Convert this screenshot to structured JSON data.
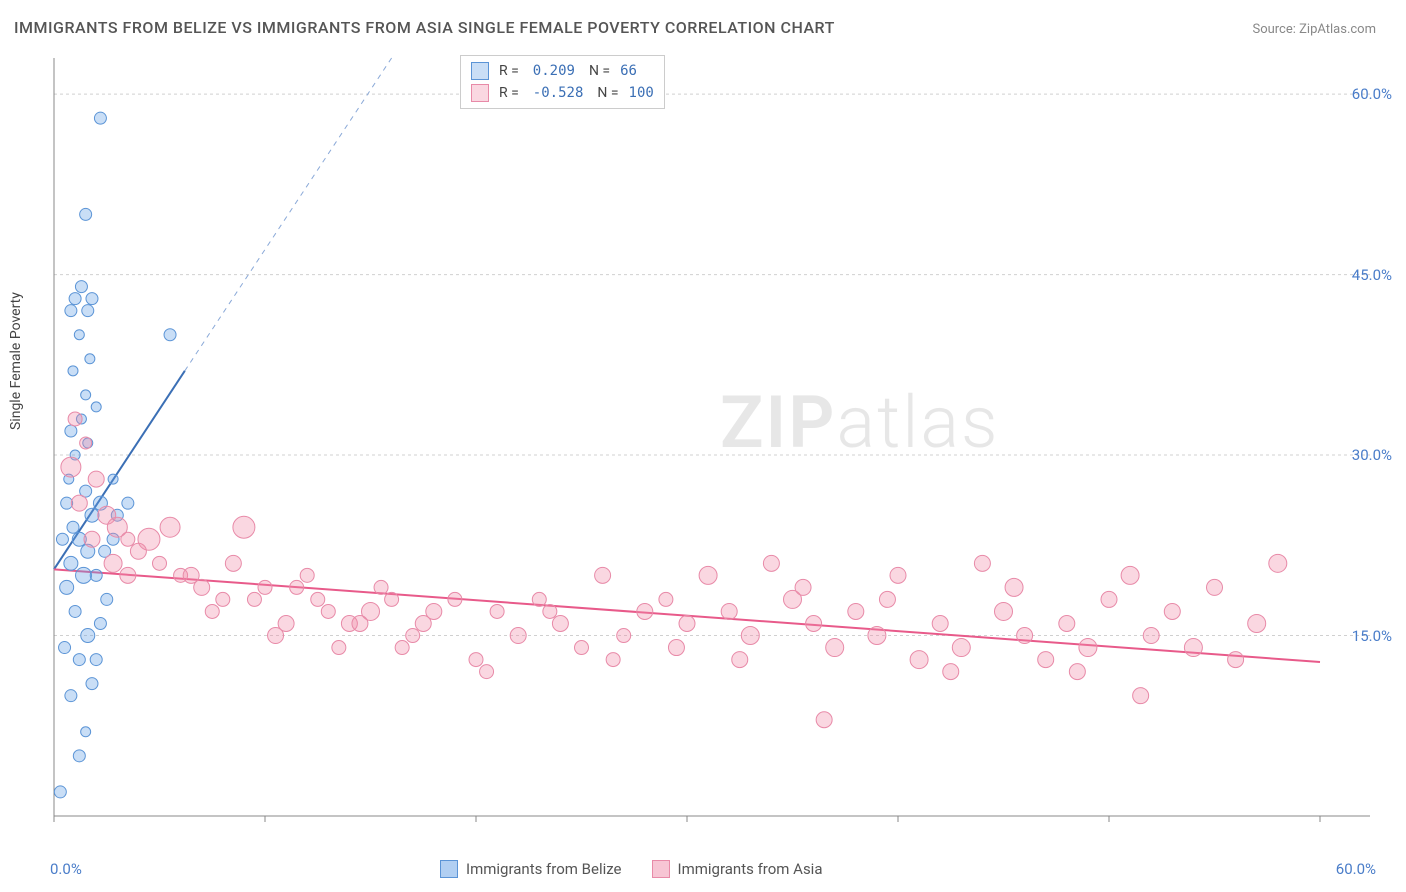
{
  "title": "IMMIGRANTS FROM BELIZE VS IMMIGRANTS FROM ASIA SINGLE FEMALE POVERTY CORRELATION CHART",
  "source": "Source: ZipAtlas.com",
  "y_axis_label": "Single Female Poverty",
  "watermark_zip": "ZIP",
  "watermark_atlas": "atlas",
  "chart": {
    "type": "scatter",
    "background_color": "#ffffff",
    "grid_color": "#d0d0d0",
    "axis_color": "#888888",
    "xlim": [
      0,
      60
    ],
    "ylim": [
      0,
      63
    ],
    "x_ticks": [
      0,
      10,
      20,
      30,
      40,
      50,
      60
    ],
    "y_ticks": [
      15,
      30,
      45,
      60
    ],
    "y_tick_labels": [
      "15.0%",
      "30.0%",
      "45.0%",
      "60.0%"
    ],
    "x_min_label": "0.0%",
    "x_max_label": "60.0%",
    "tick_label_color": "#4a7dc9",
    "marker_radius_min": 5,
    "marker_radius_max": 12,
    "series": [
      {
        "name": "Immigrants from Belize",
        "marker_fill": "rgba(100,160,230,0.35)",
        "marker_stroke": "#5b94d6",
        "line_color": "#3b6fb5",
        "line_width": 2,
        "dash_color": "#8aa9d8",
        "R": "0.209",
        "N": "66",
        "regression": {
          "x1": 0,
          "y1": 20.5,
          "x2": 6.2,
          "y2": 37,
          "dash_x2": 16,
          "dash_y2": 63
        },
        "points": [
          {
            "x": 0.3,
            "y": 2,
            "r": 6
          },
          {
            "x": 1.2,
            "y": 5,
            "r": 6
          },
          {
            "x": 1.5,
            "y": 7,
            "r": 5
          },
          {
            "x": 0.8,
            "y": 10,
            "r": 6
          },
          {
            "x": 1.8,
            "y": 11,
            "r": 6
          },
          {
            "x": 1.2,
            "y": 13,
            "r": 6
          },
          {
            "x": 2.0,
            "y": 13,
            "r": 6
          },
          {
            "x": 0.5,
            "y": 14,
            "r": 6
          },
          {
            "x": 1.6,
            "y": 15,
            "r": 7
          },
          {
            "x": 2.2,
            "y": 16,
            "r": 6
          },
          {
            "x": 1.0,
            "y": 17,
            "r": 6
          },
          {
            "x": 2.5,
            "y": 18,
            "r": 6
          },
          {
            "x": 0.6,
            "y": 19,
            "r": 7
          },
          {
            "x": 1.4,
            "y": 20,
            "r": 8
          },
          {
            "x": 2.0,
            "y": 20,
            "r": 6
          },
          {
            "x": 0.8,
            "y": 21,
            "r": 7
          },
          {
            "x": 1.6,
            "y": 22,
            "r": 7
          },
          {
            "x": 2.4,
            "y": 22,
            "r": 6
          },
          {
            "x": 0.4,
            "y": 23,
            "r": 6
          },
          {
            "x": 1.2,
            "y": 23,
            "r": 7
          },
          {
            "x": 2.8,
            "y": 23,
            "r": 6
          },
          {
            "x": 0.9,
            "y": 24,
            "r": 6
          },
          {
            "x": 1.8,
            "y": 25,
            "r": 7
          },
          {
            "x": 3.0,
            "y": 25,
            "r": 6
          },
          {
            "x": 0.6,
            "y": 26,
            "r": 6
          },
          {
            "x": 2.2,
            "y": 26,
            "r": 7
          },
          {
            "x": 3.5,
            "y": 26,
            "r": 6
          },
          {
            "x": 1.5,
            "y": 27,
            "r": 6
          },
          {
            "x": 0.7,
            "y": 28,
            "r": 5
          },
          {
            "x": 2.8,
            "y": 28,
            "r": 5
          },
          {
            "x": 1.0,
            "y": 30,
            "r": 5
          },
          {
            "x": 1.6,
            "y": 31,
            "r": 5
          },
          {
            "x": 0.8,
            "y": 32,
            "r": 6
          },
          {
            "x": 1.3,
            "y": 33,
            "r": 5
          },
          {
            "x": 2.0,
            "y": 34,
            "r": 5
          },
          {
            "x": 1.5,
            "y": 35,
            "r": 5
          },
          {
            "x": 0.9,
            "y": 37,
            "r": 5
          },
          {
            "x": 1.7,
            "y": 38,
            "r": 5
          },
          {
            "x": 1.2,
            "y": 40,
            "r": 5
          },
          {
            "x": 5.5,
            "y": 40,
            "r": 6
          },
          {
            "x": 0.8,
            "y": 42,
            "r": 6
          },
          {
            "x": 1.6,
            "y": 42,
            "r": 6
          },
          {
            "x": 1.0,
            "y": 43,
            "r": 6
          },
          {
            "x": 1.8,
            "y": 43,
            "r": 6
          },
          {
            "x": 1.3,
            "y": 44,
            "r": 6
          },
          {
            "x": 1.5,
            "y": 50,
            "r": 6
          },
          {
            "x": 2.2,
            "y": 58,
            "r": 6
          }
        ]
      },
      {
        "name": "Immigrants from Asia",
        "marker_fill": "rgba(240,140,170,0.35)",
        "marker_stroke": "#e88aa8",
        "line_color": "#e85a8a",
        "line_width": 2,
        "R": "-0.528",
        "N": "100",
        "regression": {
          "x1": 0,
          "y1": 20.5,
          "x2": 60,
          "y2": 12.8
        },
        "points": [
          {
            "x": 1.0,
            "y": 33,
            "r": 7
          },
          {
            "x": 1.5,
            "y": 31,
            "r": 6
          },
          {
            "x": 0.8,
            "y": 29,
            "r": 10
          },
          {
            "x": 2.0,
            "y": 28,
            "r": 8
          },
          {
            "x": 1.2,
            "y": 26,
            "r": 8
          },
          {
            "x": 2.5,
            "y": 25,
            "r": 9
          },
          {
            "x": 3.0,
            "y": 24,
            "r": 10
          },
          {
            "x": 1.8,
            "y": 23,
            "r": 8
          },
          {
            "x": 3.5,
            "y": 23,
            "r": 7
          },
          {
            "x": 4.0,
            "y": 22,
            "r": 8
          },
          {
            "x": 2.8,
            "y": 21,
            "r": 9
          },
          {
            "x": 5.0,
            "y": 21,
            "r": 7
          },
          {
            "x": 3.5,
            "y": 20,
            "r": 8
          },
          {
            "x": 6.0,
            "y": 20,
            "r": 7
          },
          {
            "x": 4.5,
            "y": 23,
            "r": 11
          },
          {
            "x": 7.0,
            "y": 19,
            "r": 8
          },
          {
            "x": 5.5,
            "y": 24,
            "r": 10
          },
          {
            "x": 8.0,
            "y": 18,
            "r": 7
          },
          {
            "x": 6.5,
            "y": 20,
            "r": 8
          },
          {
            "x": 9.0,
            "y": 24,
            "r": 11
          },
          {
            "x": 7.5,
            "y": 17,
            "r": 7
          },
          {
            "x": 10.0,
            "y": 19,
            "r": 7
          },
          {
            "x": 8.5,
            "y": 21,
            "r": 8
          },
          {
            "x": 11.0,
            "y": 16,
            "r": 8
          },
          {
            "x": 9.5,
            "y": 18,
            "r": 7
          },
          {
            "x": 12.0,
            "y": 20,
            "r": 7
          },
          {
            "x": 10.5,
            "y": 15,
            "r": 8
          },
          {
            "x": 13.0,
            "y": 17,
            "r": 7
          },
          {
            "x": 11.5,
            "y": 19,
            "r": 7
          },
          {
            "x": 14.0,
            "y": 16,
            "r": 8
          },
          {
            "x": 12.5,
            "y": 18,
            "r": 7
          },
          {
            "x": 15.0,
            "y": 17,
            "r": 9
          },
          {
            "x": 13.5,
            "y": 14,
            "r": 7
          },
          {
            "x": 16.0,
            "y": 18,
            "r": 7
          },
          {
            "x": 14.5,
            "y": 16,
            "r": 8
          },
          {
            "x": 17.0,
            "y": 15,
            "r": 7
          },
          {
            "x": 15.5,
            "y": 19,
            "r": 7
          },
          {
            "x": 18.0,
            "y": 17,
            "r": 8
          },
          {
            "x": 16.5,
            "y": 14,
            "r": 7
          },
          {
            "x": 19.0,
            "y": 18,
            "r": 7
          },
          {
            "x": 17.5,
            "y": 16,
            "r": 8
          },
          {
            "x": 20.0,
            "y": 13,
            "r": 7
          },
          {
            "x": 21.0,
            "y": 17,
            "r": 7
          },
          {
            "x": 22.0,
            "y": 15,
            "r": 8
          },
          {
            "x": 20.5,
            "y": 12,
            "r": 7
          },
          {
            "x": 23.0,
            "y": 18,
            "r": 7
          },
          {
            "x": 24.0,
            "y": 16,
            "r": 8
          },
          {
            "x": 25.0,
            "y": 14,
            "r": 7
          },
          {
            "x": 23.5,
            "y": 17,
            "r": 7
          },
          {
            "x": 26.0,
            "y": 20,
            "r": 8
          },
          {
            "x": 27.0,
            "y": 15,
            "r": 7
          },
          {
            "x": 28.0,
            "y": 17,
            "r": 8
          },
          {
            "x": 26.5,
            "y": 13,
            "r": 7
          },
          {
            "x": 29.0,
            "y": 18,
            "r": 7
          },
          {
            "x": 30.0,
            "y": 16,
            "r": 8
          },
          {
            "x": 31.0,
            "y": 20,
            "r": 9
          },
          {
            "x": 29.5,
            "y": 14,
            "r": 8
          },
          {
            "x": 32.0,
            "y": 17,
            "r": 8
          },
          {
            "x": 33.0,
            "y": 15,
            "r": 9
          },
          {
            "x": 34.0,
            "y": 21,
            "r": 8
          },
          {
            "x": 32.5,
            "y": 13,
            "r": 8
          },
          {
            "x": 35.0,
            "y": 18,
            "r": 9
          },
          {
            "x": 36.0,
            "y": 16,
            "r": 8
          },
          {
            "x": 37.0,
            "y": 14,
            "r": 9
          },
          {
            "x": 35.5,
            "y": 19,
            "r": 8
          },
          {
            "x": 38.0,
            "y": 17,
            "r": 8
          },
          {
            "x": 36.5,
            "y": 8,
            "r": 8
          },
          {
            "x": 39.0,
            "y": 15,
            "r": 9
          },
          {
            "x": 40.0,
            "y": 20,
            "r": 8
          },
          {
            "x": 41.0,
            "y": 13,
            "r": 9
          },
          {
            "x": 39.5,
            "y": 18,
            "r": 8
          },
          {
            "x": 42.0,
            "y": 16,
            "r": 8
          },
          {
            "x": 43.0,
            "y": 14,
            "r": 9
          },
          {
            "x": 44.0,
            "y": 21,
            "r": 8
          },
          {
            "x": 42.5,
            "y": 12,
            "r": 8
          },
          {
            "x": 45.0,
            "y": 17,
            "r": 9
          },
          {
            "x": 46.0,
            "y": 15,
            "r": 8
          },
          {
            "x": 47.0,
            "y": 13,
            "r": 8
          },
          {
            "x": 45.5,
            "y": 19,
            "r": 9
          },
          {
            "x": 48.0,
            "y": 16,
            "r": 8
          },
          {
            "x": 49.0,
            "y": 14,
            "r": 9
          },
          {
            "x": 50.0,
            "y": 18,
            "r": 8
          },
          {
            "x": 48.5,
            "y": 12,
            "r": 8
          },
          {
            "x": 51.0,
            "y": 20,
            "r": 9
          },
          {
            "x": 52.0,
            "y": 15,
            "r": 8
          },
          {
            "x": 53.0,
            "y": 17,
            "r": 8
          },
          {
            "x": 51.5,
            "y": 10,
            "r": 8
          },
          {
            "x": 54.0,
            "y": 14,
            "r": 9
          },
          {
            "x": 55.0,
            "y": 19,
            "r": 8
          },
          {
            "x": 56.0,
            "y": 13,
            "r": 8
          },
          {
            "x": 57.0,
            "y": 16,
            "r": 9
          },
          {
            "x": 58.0,
            "y": 21,
            "r": 9
          }
        ]
      }
    ]
  },
  "legend_bottom": [
    {
      "label": "Immigrants from Belize",
      "fill": "rgba(100,160,230,0.5)",
      "stroke": "#5b94d6"
    },
    {
      "label": "Immigrants from Asia",
      "fill": "rgba(240,140,170,0.5)",
      "stroke": "#e88aa8"
    }
  ]
}
